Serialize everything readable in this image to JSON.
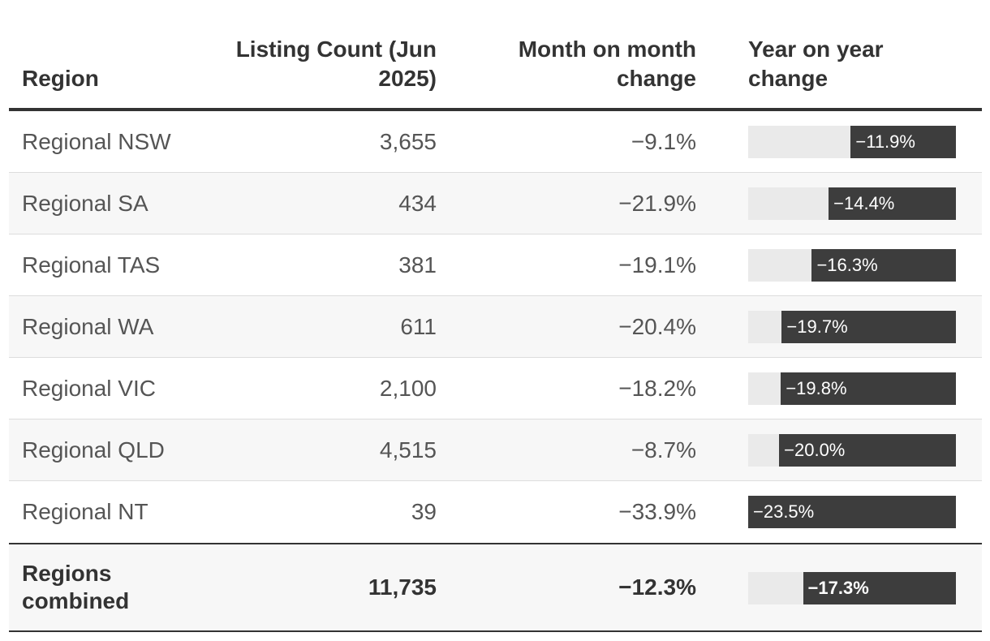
{
  "header": {
    "region": "Region",
    "count_line1": "Listing Count (Jun",
    "count_line2": "2025)",
    "mom_line1": "Month on month",
    "mom_line2": "change",
    "yoy_line1": "Year on year",
    "yoy_line2": "change"
  },
  "rows": [
    {
      "region": "Regional NSW",
      "count": "3,655",
      "mom": "−9.1%",
      "yoy": "−11.9%"
    },
    {
      "region": "Regional SA",
      "count": "434",
      "mom": "−21.9%",
      "yoy": "−14.4%"
    },
    {
      "region": "Regional TAS",
      "count": "381",
      "mom": "−19.1%",
      "yoy": "−16.3%"
    },
    {
      "region": "Regional WA",
      "count": "611",
      "mom": "−20.4%",
      "yoy": "−19.7%"
    },
    {
      "region": "Regional VIC",
      "count": "2,100",
      "mom": "−18.2%",
      "yoy": "−19.8%"
    },
    {
      "region": "Regional QLD",
      "count": "4,515",
      "mom": "−8.7%",
      "yoy": "−20.0%"
    },
    {
      "region": "Regional NT",
      "count": "39",
      "mom": "−33.9%",
      "yoy": "−23.5%"
    }
  ],
  "total": {
    "region_line1": "Regions",
    "region_line2": "combined",
    "count": "11,735",
    "mom": "−12.3%",
    "yoy": "−17.3%"
  },
  "chart_data": {
    "type": "table",
    "columns": [
      "Region",
      "Listing Count (Jun 2025)",
      "Month on month change",
      "Year on year change"
    ],
    "rows": [
      [
        "Regional NSW",
        3655,
        -9.1,
        -11.9
      ],
      [
        "Regional SA",
        434,
        -21.9,
        -14.4
      ],
      [
        "Regional TAS",
        381,
        -19.1,
        -16.3
      ],
      [
        "Regional WA",
        611,
        -20.4,
        -19.7
      ],
      [
        "Regional VIC",
        2100,
        -18.2,
        -19.8
      ],
      [
        "Regional QLD",
        4515,
        -8.7,
        -20.0
      ],
      [
        "Regional NT",
        39,
        -33.9,
        -23.5
      ]
    ],
    "total_row": [
      "Regions combined",
      11735,
      -12.3,
      -17.3
    ],
    "yoy_bar_max": 23.5,
    "colors": {
      "bar": "#3d3d3d",
      "track": "#eaeaea",
      "text": "#555555",
      "rule": "#333333"
    }
  }
}
